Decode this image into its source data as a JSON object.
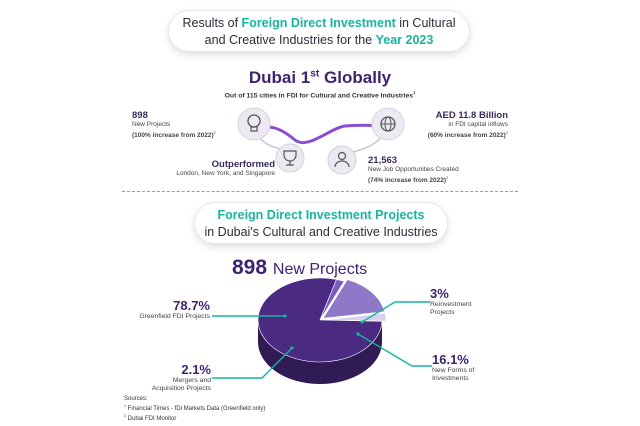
{
  "header1": {
    "line1_pre": "Results of ",
    "line1_highlight": "Foreign Direct Investment",
    "line1_post": " in Cultural",
    "line2_pre": "and Creative Industries for the ",
    "line2_highlight": "Year 2023"
  },
  "ranking": {
    "title_pre": "Dubai 1",
    "title_sup": "st",
    "title_post": " Globally",
    "subtitle": "Out of 115 cities in FDI for Cultural and Creative Industries",
    "subtitle_sup": "1"
  },
  "stats": {
    "new_projects": {
      "value": "898",
      "line1": "New Projects",
      "line2": "(100% increase from 2022)",
      "sup": "2"
    },
    "capital": {
      "value": "AED 11.8 Billion",
      "line1": "in FDI capital inflows",
      "line2": "(60% increase from 2022)",
      "sup": "2"
    },
    "outperformed": {
      "value": "Outperformed",
      "line1": "London, New York, and Singapore"
    },
    "jobs": {
      "value": "21,563",
      "line1": "New Job Opportunities Created",
      "line2": "(74% increase from 2022)",
      "sup": "2"
    }
  },
  "header2": {
    "line1": "Foreign Direct Investment Projects",
    "line2": "in Dubai's Cultural and Creative Industries"
  },
  "total": {
    "value": "898",
    "label": "New Projects"
  },
  "chart_data": {
    "type": "pie",
    "total_projects": 898,
    "slices": [
      {
        "label_line1": "Greenfield FDI Projects",
        "label_line2": "",
        "value": 78.7,
        "value_text": "78.7%",
        "color": "#4b2a82"
      },
      {
        "label_line1": "Mergers and",
        "label_line2": "Acquisition Projects",
        "value": 2.1,
        "value_text": "2.1%",
        "color": "#7a5cc0"
      },
      {
        "label_line1": "New Forms of",
        "label_line2": "Investments",
        "value": 16.1,
        "value_text": "16.1%",
        "color": "#8f78c8"
      },
      {
        "label_line1": "Reinvestment",
        "label_line2": "Projects",
        "value": 3.0,
        "value_text": "3%",
        "color": "#d9d0ee"
      }
    ]
  },
  "sources": {
    "title": "Sources:",
    "s1_sup": "1",
    "s1": " Financial Times - fDi Markets Data (Greenfield only)",
    "s2_sup": "2",
    "s2": " Dubai FDI Monitor"
  },
  "colors": {
    "teal": "#16b5a0",
    "purple": "#4b2a7d",
    "connector": "#8a4fd0"
  }
}
